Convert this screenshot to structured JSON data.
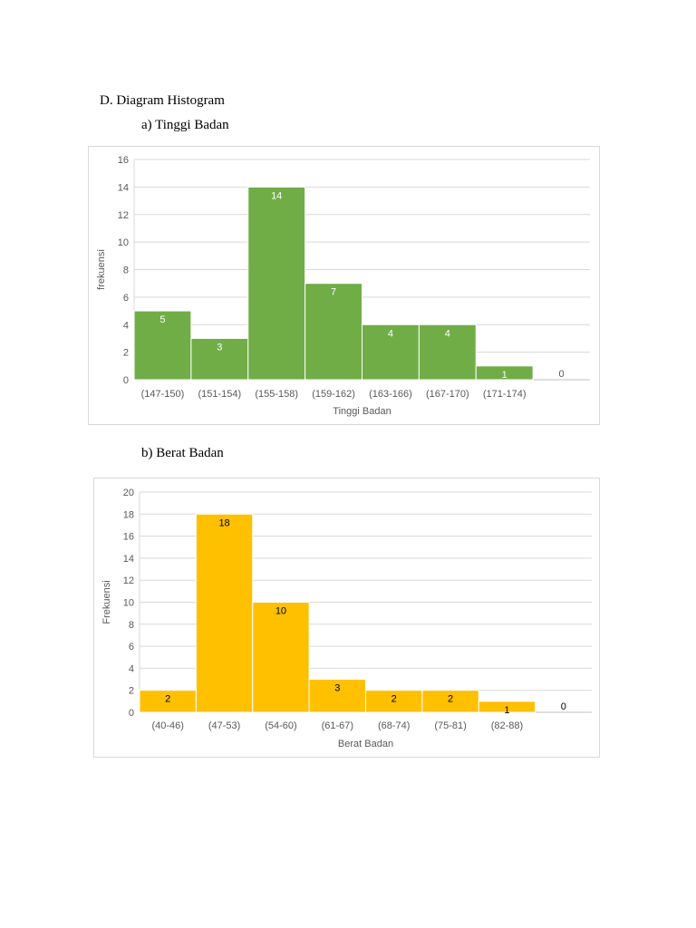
{
  "section_title": "D. Diagram Histogram",
  "subtitle_a": "a) Tinggi Badan",
  "subtitle_b": "b) Berat Badan",
  "chart_data": [
    {
      "type": "bar",
      "title": "",
      "categories": [
        "(147-150)",
        "(151-154)",
        "(155-158)",
        "(159-162)",
        "(163-166)",
        "(167-170)",
        "(171-174)",
        ""
      ],
      "values": [
        5,
        3,
        14,
        7,
        4,
        4,
        1,
        0
      ],
      "xlabel": "Tinggi Badan",
      "ylabel": "frekuensi",
      "ylim": [
        0,
        16
      ],
      "yticks": [
        0,
        2,
        4,
        6,
        8,
        10,
        12,
        14,
        16
      ],
      "grid": true,
      "bar_color": "#70ad47",
      "label_color": "#ffffff",
      "zero_label_color": "#595959"
    },
    {
      "type": "bar",
      "title": "",
      "categories": [
        "(40-46)",
        "(47-53)",
        "(54-60)",
        "(61-67)",
        "(68-74)",
        "(75-81)",
        "(82-88)",
        ""
      ],
      "values": [
        2,
        18,
        10,
        3,
        2,
        2,
        1,
        0
      ],
      "xlabel": "Berat Badan",
      "ylabel": "Frekuensi",
      "ylim": [
        0,
        20
      ],
      "yticks": [
        0,
        2,
        4,
        6,
        8,
        10,
        12,
        14,
        16,
        18,
        20
      ],
      "grid": true,
      "bar_color": "#ffc000",
      "label_color": "#000000",
      "zero_label_color": "#000000"
    }
  ]
}
